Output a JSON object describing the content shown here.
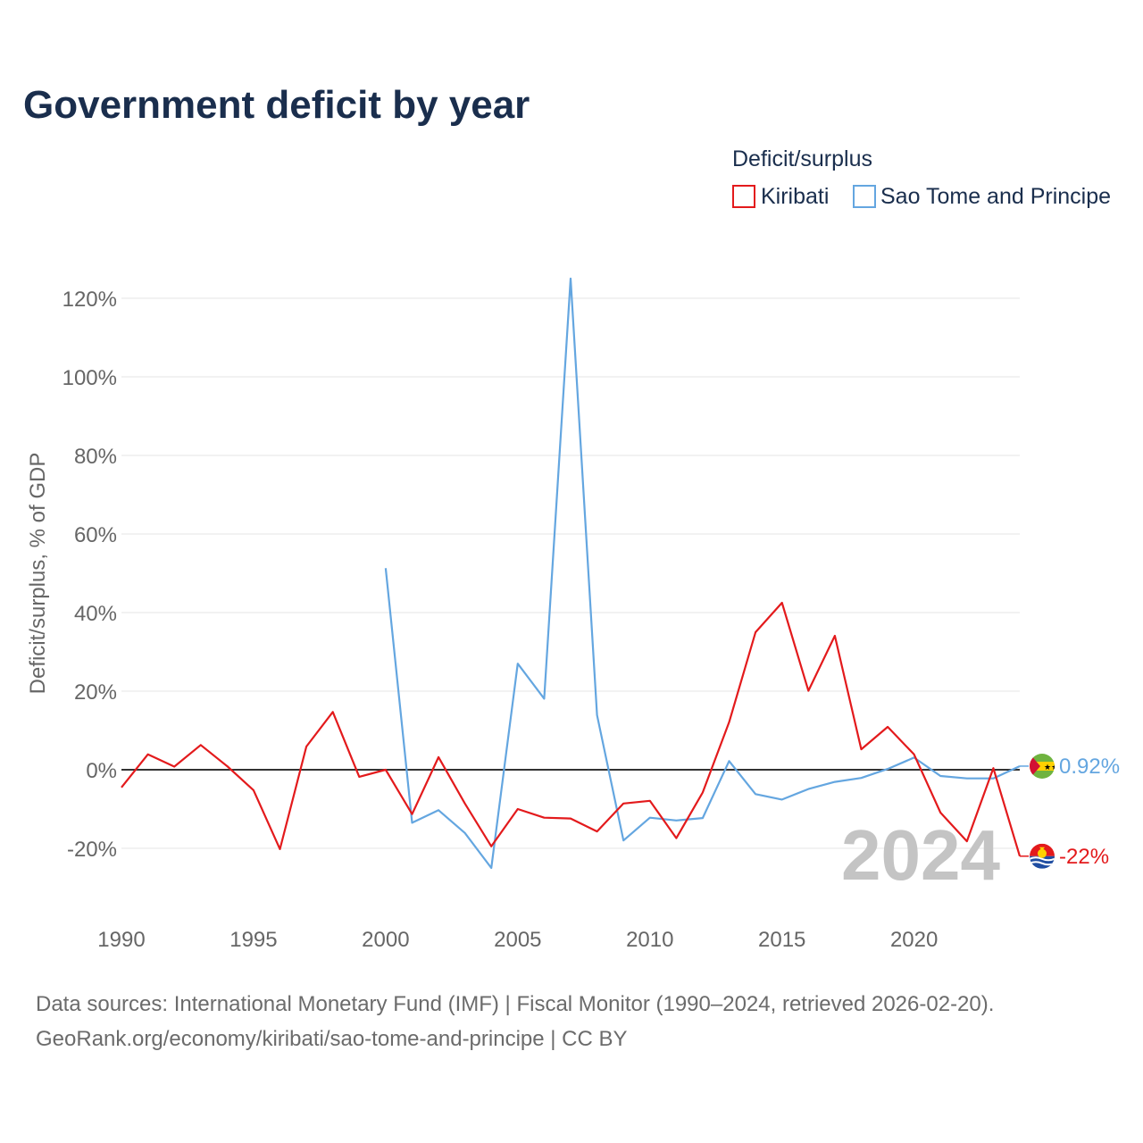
{
  "title": "Government deficit by year",
  "legend": {
    "title": "Deficit/surplus",
    "items": [
      {
        "name": "Kiribati",
        "color": "#e31a1c"
      },
      {
        "name": "Sao Tome and Principe",
        "color": "#64a6e0"
      }
    ]
  },
  "current_year": "2024",
  "source_line1": "Data sources: International Monetary Fund (IMF) | Fiscal Monitor (1990–2024, retrieved 2026-02-20).",
  "source_line2": "GeoRank.org/economy/kiribati/sao-tome-and-principe | CC BY",
  "chart_data": {
    "type": "line",
    "title": "Government deficit by year",
    "xlabel": "",
    "ylabel": "Deficit/surplus, % of GDP",
    "xlim": [
      1990,
      2024
    ],
    "ylim": [
      -30,
      125
    ],
    "x_ticks": [
      1990,
      1995,
      2000,
      2005,
      2010,
      2015,
      2020
    ],
    "x_tick_labels": [
      "1990",
      "1995",
      "2000",
      "2005",
      "2010",
      "2015",
      "2020"
    ],
    "y_ticks": [
      -20,
      0,
      20,
      40,
      60,
      80,
      100,
      120
    ],
    "y_tick_labels": [
      "-20%",
      "0%",
      "20%",
      "40%",
      "60%",
      "80%",
      "100%",
      "120%"
    ],
    "grid": true,
    "legend_position": "top-right",
    "series": [
      {
        "name": "Kiribati",
        "color": "#e31a1c",
        "x": [
          1990,
          1991,
          1992,
          1993,
          1994,
          1995,
          1996,
          1997,
          1998,
          1999,
          2000,
          2001,
          2002,
          2003,
          2004,
          2005,
          2006,
          2007,
          2008,
          2009,
          2010,
          2011,
          2012,
          2013,
          2014,
          2015,
          2016,
          2017,
          2018,
          2019,
          2020,
          2021,
          2022,
          2023,
          2024
        ],
        "values": [
          -4.5,
          3.9,
          0.8,
          6.3,
          0.9,
          -5.2,
          -20.2,
          5.9,
          14.7,
          -1.8,
          0.0,
          -11.3,
          3.2,
          -8.6,
          -19.5,
          -10.0,
          -12.2,
          -12.4,
          -15.7,
          -8.6,
          -7.9,
          -17.4,
          -5.8,
          12.1,
          35.0,
          42.5,
          20.1,
          34.1,
          5.2,
          10.9,
          3.9,
          -10.9,
          -18.2,
          0.4,
          -22.0
        ],
        "end_label": "-22%"
      },
      {
        "name": "Sao Tome and Principe",
        "color": "#64a6e0",
        "x": [
          2000,
          2001,
          2002,
          2003,
          2004,
          2005,
          2006,
          2007,
          2008,
          2009,
          2010,
          2011,
          2012,
          2013,
          2014,
          2015,
          2016,
          2017,
          2018,
          2019,
          2020,
          2021,
          2022,
          2023,
          2024
        ],
        "values": [
          51.3,
          -13.5,
          -10.3,
          -16.1,
          -25.0,
          27.0,
          18.1,
          125.0,
          13.9,
          -18.0,
          -12.2,
          -12.9,
          -12.3,
          2.2,
          -6.2,
          -7.6,
          -4.9,
          -3.1,
          -2.1,
          0.2,
          3.1,
          -1.6,
          -2.2,
          -2.2,
          0.92
        ],
        "end_label": "0.92%"
      }
    ]
  }
}
